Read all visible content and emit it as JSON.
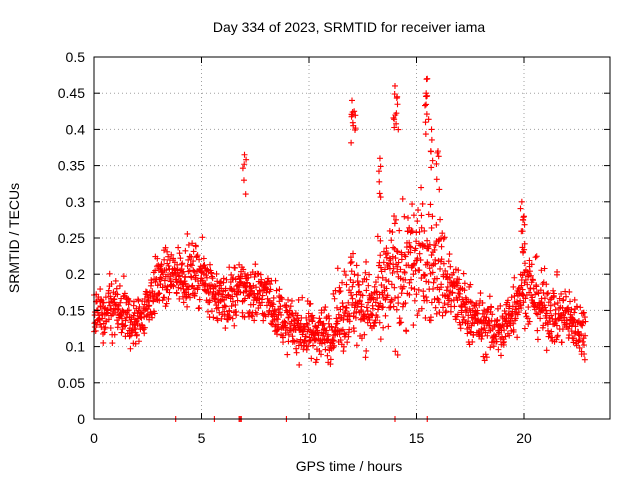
{
  "chart_data": {
    "type": "scatter",
    "title": "Day 334 of 2023, SRMTID for receiver iama",
    "xlabel": "GPS time / hours",
    "ylabel": "SRMTID / TECUs",
    "xlim": [
      0,
      24
    ],
    "ylim": [
      0,
      0.5
    ],
    "x_ticks": [
      0,
      5,
      10,
      15,
      20
    ],
    "x_tick_labels": [
      "0",
      "5",
      "10",
      "15",
      "20"
    ],
    "y_ticks": [
      0,
      0.05,
      0.1,
      0.15,
      0.2,
      0.25,
      0.3,
      0.35,
      0.4,
      0.45,
      0.5
    ],
    "y_tick_labels": [
      "0",
      "0.05",
      "0.1",
      "0.15",
      "0.2",
      "0.25",
      "0.3",
      "0.35",
      "0.4",
      "0.45",
      "0.5"
    ],
    "grid": true,
    "marker": "+",
    "color": "#ff0000",
    "sampling_interval_hours": 0.025,
    "x_start": 0,
    "x_end": 22.85,
    "envelope": [
      {
        "t": 0,
        "center": 0.14,
        "spread": 0.05
      },
      {
        "t": 1,
        "center": 0.15,
        "spread": 0.06
      },
      {
        "t": 2,
        "center": 0.13,
        "spread": 0.045
      },
      {
        "t": 3,
        "center": 0.19,
        "spread": 0.05
      },
      {
        "t": 4,
        "center": 0.2,
        "spread": 0.05
      },
      {
        "t": 5,
        "center": 0.2,
        "spread": 0.05
      },
      {
        "t": 6,
        "center": 0.16,
        "spread": 0.05
      },
      {
        "t": 7,
        "center": 0.18,
        "spread": 0.06
      },
      {
        "t": 8,
        "center": 0.17,
        "spread": 0.05
      },
      {
        "t": 9,
        "center": 0.13,
        "spread": 0.045
      },
      {
        "t": 10,
        "center": 0.12,
        "spread": 0.05
      },
      {
        "t": 11,
        "center": 0.12,
        "spread": 0.05
      },
      {
        "t": 12,
        "center": 0.17,
        "spread": 0.09
      },
      {
        "t": 13,
        "center": 0.15,
        "spread": 0.07
      },
      {
        "t": 14,
        "center": 0.2,
        "spread": 0.12
      },
      {
        "t": 15,
        "center": 0.22,
        "spread": 0.12
      },
      {
        "t": 16,
        "center": 0.21,
        "spread": 0.1
      },
      {
        "t": 17,
        "center": 0.16,
        "spread": 0.06
      },
      {
        "t": 18,
        "center": 0.13,
        "spread": 0.05
      },
      {
        "t": 19,
        "center": 0.12,
        "spread": 0.05
      },
      {
        "t": 20,
        "center": 0.19,
        "spread": 0.07
      },
      {
        "t": 21,
        "center": 0.15,
        "spread": 0.06
      },
      {
        "t": 22,
        "center": 0.14,
        "spread": 0.05
      },
      {
        "t": 22.85,
        "center": 0.12,
        "spread": 0.05
      }
    ],
    "peaks": [
      {
        "x": 7.0,
        "y": 0.365
      },
      {
        "x": 12.0,
        "y": 0.44
      },
      {
        "x": 12.1,
        "y": 0.425
      },
      {
        "x": 13.3,
        "y": 0.36
      },
      {
        "x": 14.0,
        "y": 0.46
      },
      {
        "x": 14.1,
        "y": 0.445
      },
      {
        "x": 15.5,
        "y": 0.47
      },
      {
        "x": 15.45,
        "y": 0.45
      },
      {
        "x": 15.7,
        "y": 0.4
      },
      {
        "x": 16.0,
        "y": 0.37
      },
      {
        "x": 19.9,
        "y": 0.3
      },
      {
        "x": 20.0,
        "y": 0.28
      }
    ],
    "zero_points": [
      3.8,
      5.6,
      6.75,
      6.8,
      6.85,
      8.95,
      14.0,
      15.5
    ]
  }
}
